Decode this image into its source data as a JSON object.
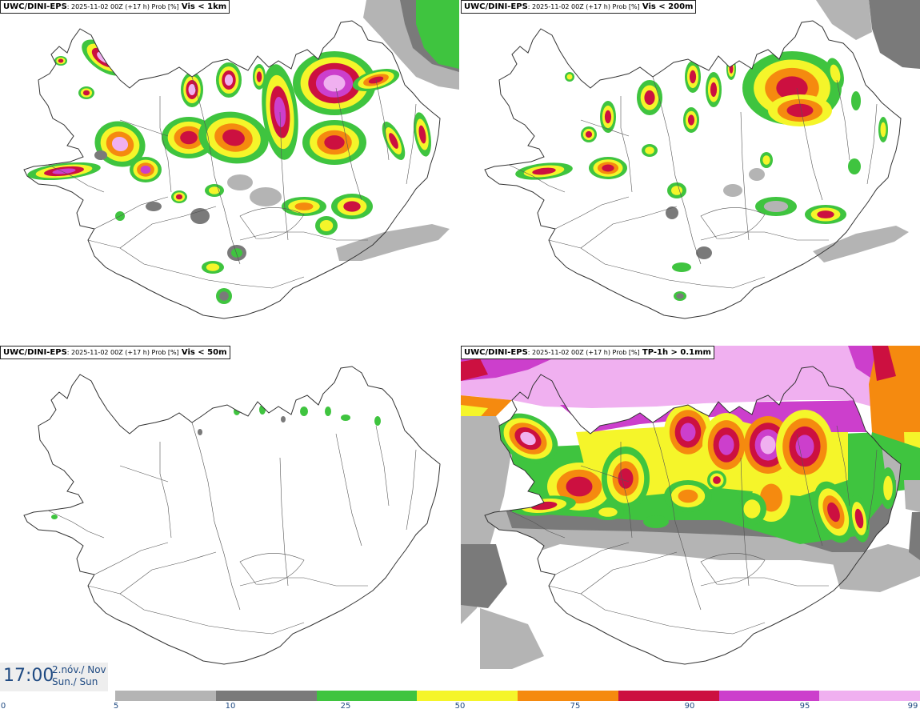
{
  "panels": [
    {
      "model": "UWC/DINI-EPS",
      "meta": ": 2025-11-02 00Z (+17 h) Prob [%]",
      "param": "Vis < 1km"
    },
    {
      "model": "UWC/DINI-EPS",
      "meta": ": 2025-11-02 00Z (+17 h) Prob [%]",
      "param": "Vis < 200m"
    },
    {
      "model": "UWC/DINI-EPS",
      "meta": ": 2025-11-02 00Z (+17 h) Prob [%]",
      "param": "Vis < 50m"
    },
    {
      "model": "UWC/DINI-EPS",
      "meta": ": 2025-11-02 00Z (+17 h) Prob [%]",
      "param": "TP-1h > 0.1mm"
    }
  ],
  "time": {
    "clock": "17:00",
    "date_line": "2.nóv./ Nov",
    "day_line": "Sun./ Sun"
  },
  "legend": {
    "ticks": [
      "0",
      "5",
      "10",
      "25",
      "50",
      "75",
      "90",
      "95",
      "99"
    ],
    "colors": [
      "#b4b4b4",
      "#7a7a7a",
      "#3fc43f",
      "#f5f52a",
      "#f58a0f",
      "#cc1040",
      "#cc3fcc",
      "#f0b0f0"
    ]
  },
  "colors": {
    "lt_gray": "#b4b4b4",
    "dk_gray": "#7a7a7a",
    "green": "#3fc43f",
    "yellow": "#f5f52a",
    "orange": "#f58a0f",
    "red": "#cc1040",
    "magenta": "#cc3fcc",
    "pink": "#f0b0f0",
    "outline": "#333333",
    "accent": "#1f4a82"
  }
}
